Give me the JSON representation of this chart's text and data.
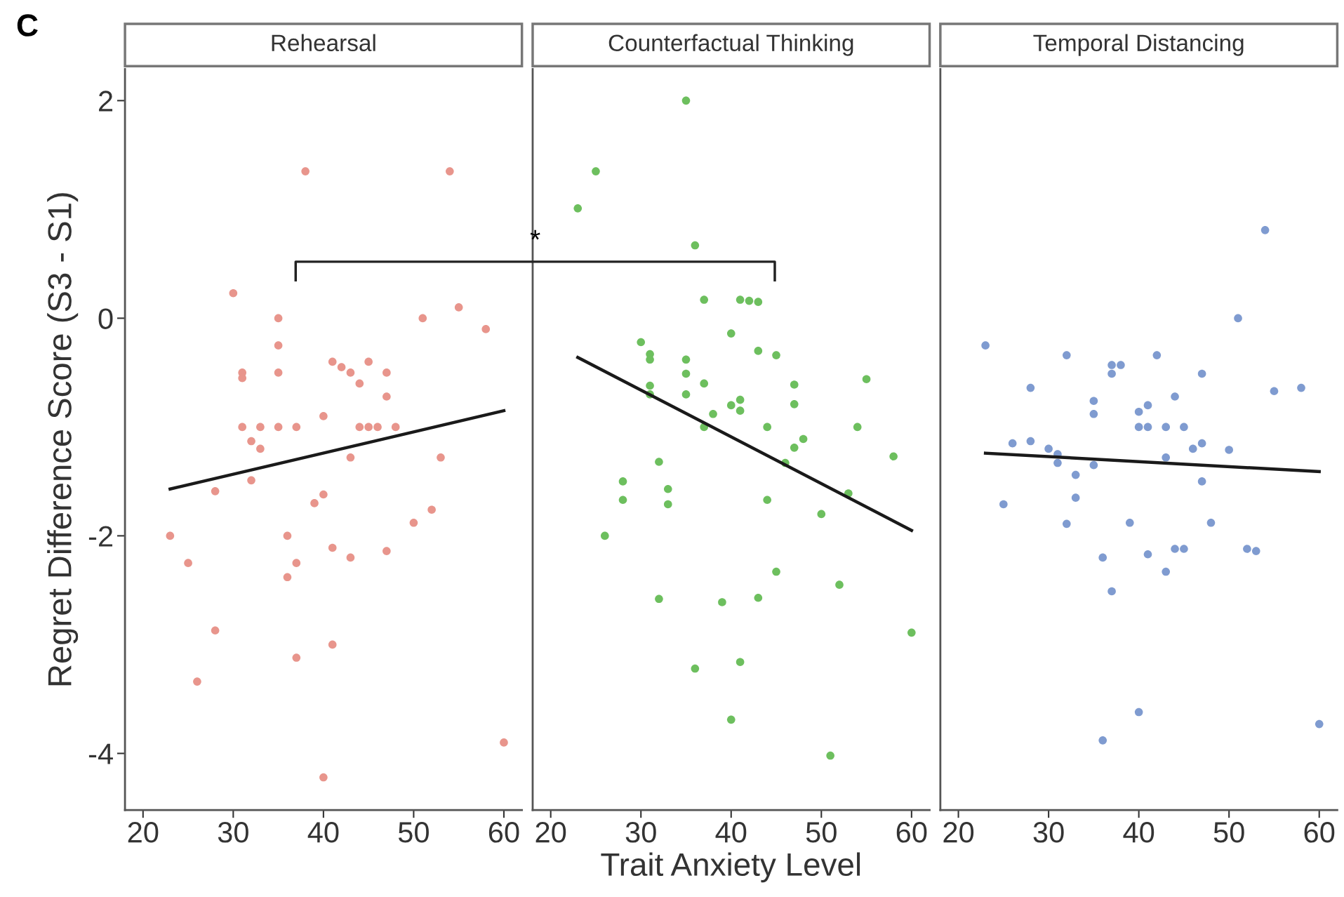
{
  "chart_data": [
    {
      "type": "scatter",
      "title": "Rehearsal",
      "ylabel": "Regret Difference Score (S3 - S1)",
      "annotations": [
        "C",
        "*"
      ],
      "xlim": [
        18,
        62
      ],
      "ylim": [
        -4.52,
        2.29
      ],
      "xticks": [
        20,
        30,
        40,
        50,
        60
      ],
      "yticks": [
        -4,
        -2,
        0,
        2
      ],
      "grid": false,
      "series": [
        {
          "marker": "circle",
          "color": "#e8958c",
          "x": [
            38,
            54,
            30,
            35,
            35,
            35,
            31,
            31,
            51,
            55,
            58,
            41,
            42,
            43,
            44,
            45,
            47,
            47,
            31,
            33,
            35,
            37,
            44,
            45,
            46,
            48,
            40,
            32,
            33,
            32,
            28,
            43,
            53,
            40,
            39,
            50,
            52,
            23,
            25,
            36,
            37,
            36,
            41,
            43,
            47,
            28,
            37,
            41,
            26,
            60,
            40
          ],
          "values": [
            1.35,
            1.35,
            0.23,
            0,
            -0.25,
            -0.5,
            -0.5,
            -0.55,
            0,
            0.1,
            -0.1,
            -0.4,
            -0.45,
            -0.5,
            -0.6,
            -0.4,
            -0.5,
            -0.72,
            -1,
            -1,
            -1,
            -1,
            -1,
            -1,
            -1,
            -1,
            -0.9,
            -1.13,
            -1.2,
            -1.49,
            -1.59,
            -1.28,
            -1.28,
            -1.62,
            -1.7,
            -1.88,
            -1.76,
            -2,
            -2.25,
            -2,
            -2.25,
            -2.38,
            -2.11,
            -2.2,
            -2.14,
            -2.87,
            -3.12,
            -3,
            -3.34,
            -3.9,
            -4.22
          ]
        },
        {
          "type": "line",
          "color": "#1a1a1a",
          "x": [
            23,
            60
          ],
          "values": [
            -1.57,
            -0.85
          ]
        }
      ]
    },
    {
      "type": "scatter",
      "title": "Counterfactual Thinking",
      "xlabel": "Trait Anxiety Level",
      "xlim": [
        18,
        62
      ],
      "ylim": [
        -4.52,
        2.29
      ],
      "xticks": [
        20,
        30,
        40,
        50,
        60
      ],
      "yticks": [
        -4,
        -2,
        0,
        2
      ],
      "tick_labels": "x",
      "grid": false,
      "series": [
        {
          "marker": "circle",
          "color": "#6dbf5e",
          "x": [
            35,
            25,
            23,
            36,
            37,
            41,
            42,
            43,
            40,
            43,
            45,
            30,
            31,
            31,
            35,
            35,
            35,
            31,
            31,
            37,
            38,
            40,
            41,
            41,
            37,
            44,
            47,
            47,
            55,
            54,
            58,
            48,
            47,
            46,
            53,
            32,
            28,
            28,
            33,
            33,
            44,
            50,
            26,
            45,
            52,
            32,
            39,
            43,
            60,
            36,
            41,
            40,
            51
          ],
          "values": [
            2.0,
            1.35,
            1.01,
            0.67,
            0.17,
            0.17,
            0.16,
            0.15,
            -0.14,
            -0.3,
            -0.34,
            -0.22,
            -0.33,
            -0.38,
            -0.38,
            -0.51,
            -0.7,
            -0.62,
            -0.7,
            -0.6,
            -0.88,
            -0.8,
            -0.75,
            -0.85,
            -1.0,
            -1.0,
            -0.61,
            -0.79,
            -0.56,
            -1.0,
            -1.27,
            -1.11,
            -1.19,
            -1.33,
            -1.61,
            -1.32,
            -1.5,
            -1.67,
            -1.57,
            -1.71,
            -1.67,
            -1.8,
            -2.0,
            -2.33,
            -2.45,
            -2.58,
            -2.61,
            -2.57,
            -2.89,
            -3.22,
            -3.16,
            -3.69,
            -4.02
          ]
        },
        {
          "type": "line",
          "color": "#1a1a1a",
          "x": [
            23,
            60
          ],
          "values": [
            -0.36,
            -1.95
          ]
        }
      ]
    },
    {
      "type": "scatter",
      "title": "Temporal Distancing",
      "xlim": [
        18,
        62
      ],
      "ylim": [
        -4.52,
        2.29
      ],
      "xticks": [
        20,
        30,
        40,
        50,
        60
      ],
      "yticks": [
        -4,
        -2,
        0,
        2
      ],
      "tick_labels": "x",
      "grid": false,
      "series": [
        {
          "marker": "circle",
          "color": "#7f9bd0",
          "x": [
            54,
            51,
            23,
            32,
            42,
            37,
            37,
            38,
            47,
            28,
            55,
            58,
            35,
            35,
            44,
            40,
            41,
            40,
            41,
            43,
            45,
            26,
            28,
            30,
            31,
            31,
            33,
            35,
            43,
            46,
            47,
            50,
            47,
            25,
            33,
            32,
            39,
            48,
            36,
            41,
            44,
            45,
            52,
            53,
            43,
            37,
            40,
            36,
            60
          ],
          "values": [
            0.81,
            0,
            -0.25,
            -0.34,
            -0.34,
            -0.43,
            -0.51,
            -0.43,
            -0.51,
            -0.64,
            -0.67,
            -0.64,
            -0.76,
            -0.88,
            -0.72,
            -0.86,
            -0.8,
            -1.0,
            -1.0,
            -1.0,
            -1.0,
            -1.15,
            -1.13,
            -1.2,
            -1.25,
            -1.33,
            -1.44,
            -1.35,
            -1.28,
            -1.2,
            -1.15,
            -1.21,
            -1.5,
            -1.71,
            -1.65,
            -1.89,
            -1.88,
            -1.88,
            -2.2,
            -2.17,
            -2.12,
            -2.12,
            -2.12,
            -2.14,
            -2.33,
            -2.51,
            -3.62,
            -3.88,
            -3.73
          ]
        },
        {
          "type": "line",
          "color": "#1a1a1a",
          "x": [
            23,
            60
          ],
          "values": [
            -1.24,
            -1.41
          ]
        }
      ]
    }
  ]
}
